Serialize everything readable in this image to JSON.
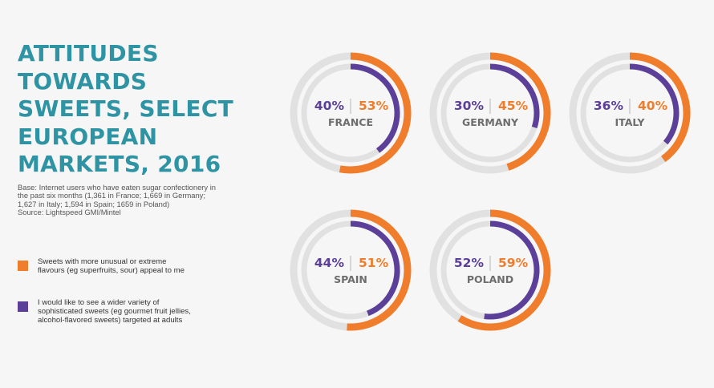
{
  "title_lines": [
    "ATTITUDES",
    "TOWARDS",
    "SWEETS, SELECT",
    "EUROPEAN",
    "MARKETS, 2016"
  ],
  "note_lines": [
    "Base: Internet users who have eaten sugar confectionery in",
    "the past six months (1,361 in France; 1,669 in Germany;",
    "1,627 in Italy; 1,594 in Spain; 1659 in Poland)",
    "Source: Lightspeed GMI/Mintel"
  ],
  "legend": [
    {
      "color": "#f07d2c",
      "lines": [
        "Sweets with more unusual or extreme",
        "flavours (eg superfruits, sour) appeal to me"
      ]
    },
    {
      "color": "#5b3f98",
      "lines": [
        "I would like to see a wider variety of",
        "sophisticated sweets (eg gourmet fruit jellies,",
        "alcohol-flavored sweets) targeted at adults"
      ]
    }
  ],
  "colors": {
    "unusual": "#f07d2c",
    "sophisticated": "#5b3f98",
    "track": "#e1e1e1",
    "title": "#2e93a3",
    "divider": "#b5b5b5"
  },
  "chart_data": {
    "type": "pie",
    "unit": "%",
    "categories": [
      "FRANCE",
      "GERMANY",
      "ITALY",
      "SPAIN",
      "POLAND"
    ],
    "series": [
      {
        "name": "Sweets with more unusual or extreme flavours (eg superfruits, sour) appeal to me",
        "color": "#f07d2c",
        "values": [
          53,
          45,
          40,
          51,
          59
        ]
      },
      {
        "name": "I would like to see a wider variety of sophisticated sweets (eg gourmet fruit jellies, alcohol-flavored sweets) targeted at adults",
        "color": "#5b3f98",
        "values": [
          40,
          30,
          36,
          44,
          52
        ]
      }
    ],
    "labels": [
      {
        "sophisticated": "40%",
        "unusual": "53%",
        "country": "FRANCE"
      },
      {
        "sophisticated": "30%",
        "unusual": "45%",
        "country": "GERMANY"
      },
      {
        "sophisticated": "36%",
        "unusual": "40%",
        "country": "ITALY"
      },
      {
        "sophisticated": "44%",
        "unusual": "51%",
        "country": "SPAIN"
      },
      {
        "sophisticated": "52%",
        "unusual": "59%",
        "country": "POLAND"
      }
    ]
  }
}
